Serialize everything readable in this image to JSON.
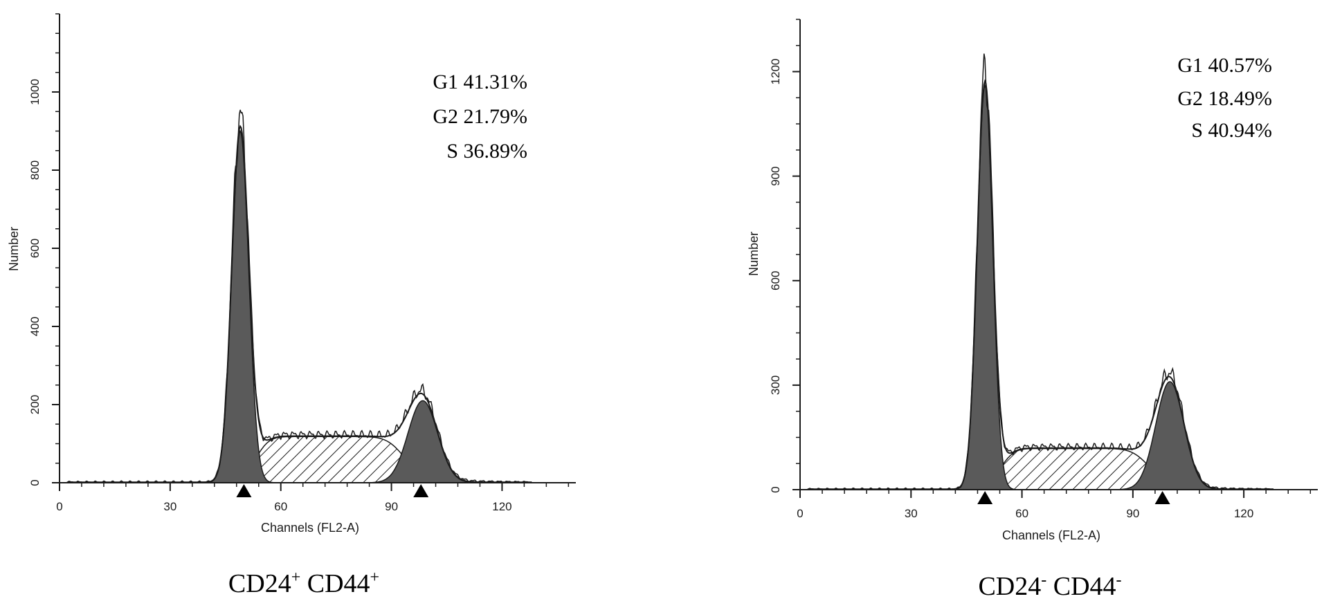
{
  "chart_data": [
    {
      "type": "area",
      "caption": {
        "base1": "CD24",
        "sup1": "+",
        "base2": " CD44",
        "sup2": "+"
      },
      "xlabel": "Channels (FL2-A)",
      "ylabel": "Number",
      "xlim": [
        0,
        140
      ],
      "ylim": [
        0,
        1200
      ],
      "x_ticks": [
        0,
        30,
        60,
        90,
        120
      ],
      "y_ticks": [
        0,
        200,
        400,
        600,
        800,
        1000
      ],
      "markers": [
        50,
        98
      ],
      "stats": [
        "G1 41.31%",
        "G2 21.79%",
        "S 36.89%"
      ],
      "g1": {
        "peak": 900,
        "mean": 49,
        "sd": 2.3
      },
      "g2": {
        "peak": 210,
        "mean": 98.5,
        "sd": 4.0
      },
      "s_phase": {
        "level": 118,
        "start": 53,
        "end": 94
      },
      "series": [
        {
          "name": "G1",
          "values": []
        },
        {
          "name": "S",
          "values": []
        },
        {
          "name": "G2",
          "values": []
        }
      ]
    },
    {
      "type": "area",
      "caption": {
        "base1": "CD24",
        "sup1": "-",
        "base2": " CD44",
        "sup2": "-"
      },
      "xlabel": "Channels (FL2-A)",
      "ylabel": "Number",
      "xlim": [
        0,
        140
      ],
      "ylim": [
        0,
        1350
      ],
      "x_ticks": [
        0,
        30,
        60,
        90,
        120
      ],
      "y_ticks": [
        0,
        300,
        600,
        900,
        1200
      ],
      "markers": [
        50,
        98
      ],
      "stats": [
        "G1 40.57%",
        "G2 18.49%",
        "S 40.94%"
      ],
      "g1": {
        "peak": 1160,
        "mean": 50,
        "sd": 2.1
      },
      "g2": {
        "peak": 310,
        "mean": 100,
        "sd": 3.8
      },
      "s_phase": {
        "level": 118,
        "start": 54,
        "end": 95
      },
      "series": [
        {
          "name": "G1",
          "values": []
        },
        {
          "name": "S",
          "values": []
        },
        {
          "name": "G2",
          "values": []
        }
      ]
    }
  ],
  "colors": {
    "fill": "#5a5a5a",
    "line": "#1a1a1a",
    "hatch": "#1a1a1a"
  }
}
